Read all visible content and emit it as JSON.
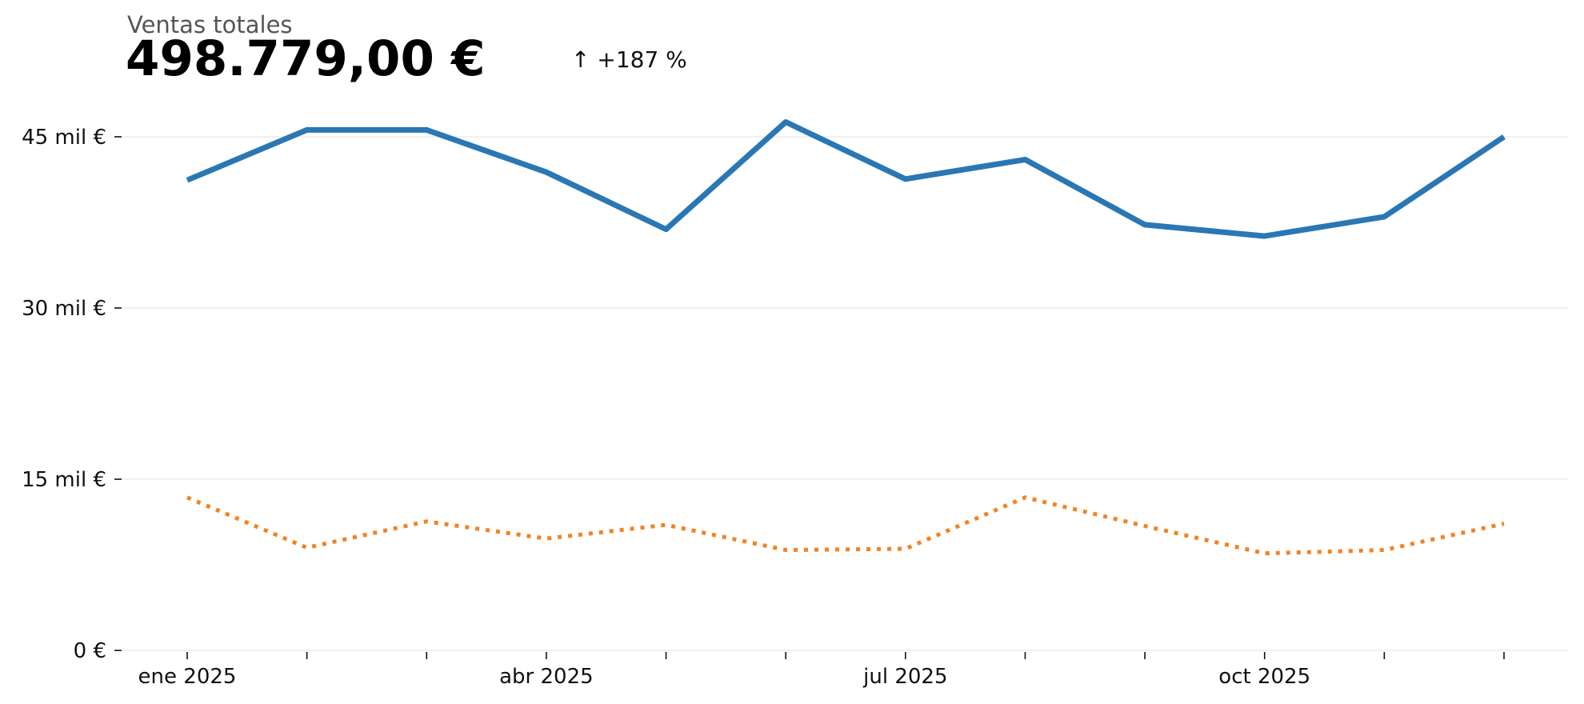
{
  "kpi": {
    "label": "Ventas totales",
    "value": "498.779,00 €",
    "delta_arrow": "↑",
    "delta": "+187 %"
  },
  "colors": {
    "series_solid": "#2a77b4",
    "series_dotted": "#f28322",
    "grid": "#e8e8e8",
    "axis": "#111111"
  },
  "chart_data": {
    "type": "line",
    "title": "",
    "xlabel": "",
    "ylabel": "",
    "x": [
      "2025-01",
      "2025-02",
      "2025-03",
      "2025-04",
      "2025-05",
      "2025-06",
      "2025-07",
      "2025-08",
      "2025-09",
      "2025-10",
      "2025-11",
      "2025-12"
    ],
    "x_tick_labels": [
      {
        "x": "2025-01",
        "label": "ene 2025"
      },
      {
        "x": "2025-04",
        "label": "abr 2025"
      },
      {
        "x": "2025-07",
        "label": "jul 2025"
      },
      {
        "x": "2025-10",
        "label": "oct 2025"
      }
    ],
    "ylim": [
      0,
      45000
    ],
    "yticks": [
      0,
      15000,
      30000,
      45000
    ],
    "ytick_labels": [
      "0 €",
      "15 mil €",
      "30 mil €",
      "45 mil €"
    ],
    "grid": "horizontal",
    "legend": "none",
    "series": [
      {
        "style": "solid",
        "values": [
          41200,
          45600,
          45600,
          41900,
          36900,
          46300,
          41300,
          43000,
          37300,
          36300,
          38000,
          45000
        ]
      },
      {
        "style": "dotted",
        "values": [
          13400,
          9000,
          11300,
          9800,
          11000,
          8800,
          8900,
          13400,
          10900,
          8500,
          8800,
          11100
        ]
      }
    ]
  }
}
